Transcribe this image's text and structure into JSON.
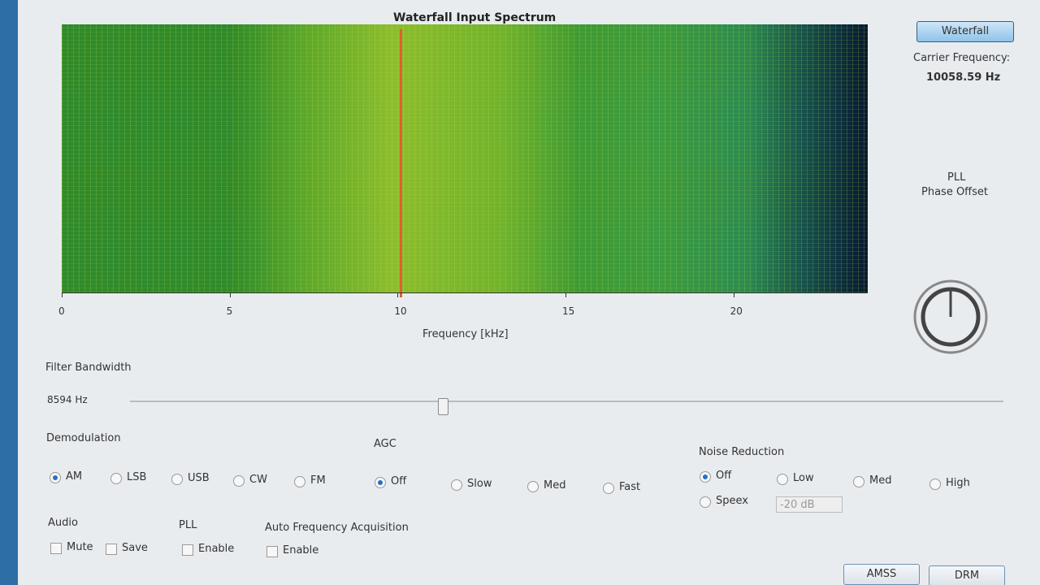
{
  "waterfall": {
    "title": "Waterfall Input Spectrum",
    "x_label": "Frequency [kHz]",
    "xlim": [
      0,
      24
    ],
    "xticks": [
      0,
      5,
      10,
      15,
      20
    ]
  },
  "side": {
    "mode_button": "Waterfall",
    "carrier_label": "Carrier Frequency:",
    "carrier_value": "10058.59 Hz",
    "pll_label_1": "PLL",
    "pll_label_2": "Phase Offset"
  },
  "filter": {
    "label": "Filter Bandwidth",
    "value": "8594 Hz"
  },
  "demodulation": {
    "label": "Demodulation",
    "options": [
      "AM",
      "LSB",
      "USB",
      "CW",
      "FM"
    ],
    "selected": 0
  },
  "agc": {
    "label": "AGC",
    "options": [
      "Off",
      "Slow",
      "Med",
      "Fast"
    ],
    "selected": 0
  },
  "noise_reduction": {
    "label": "Noise Reduction",
    "options": [
      "Off",
      "Low",
      "Med",
      "High",
      "Speex"
    ],
    "selected": 0,
    "speex_level": "-20 dB"
  },
  "audio": {
    "label": "Audio",
    "checks": [
      "Mute",
      "Save"
    ]
  },
  "pll": {
    "label": "PLL",
    "checks": [
      "Enable"
    ]
  },
  "afa": {
    "label": "Auto Frequency Acquisition",
    "checks": [
      "Enable"
    ]
  },
  "buttons": [
    "AMSS",
    "DRM"
  ]
}
